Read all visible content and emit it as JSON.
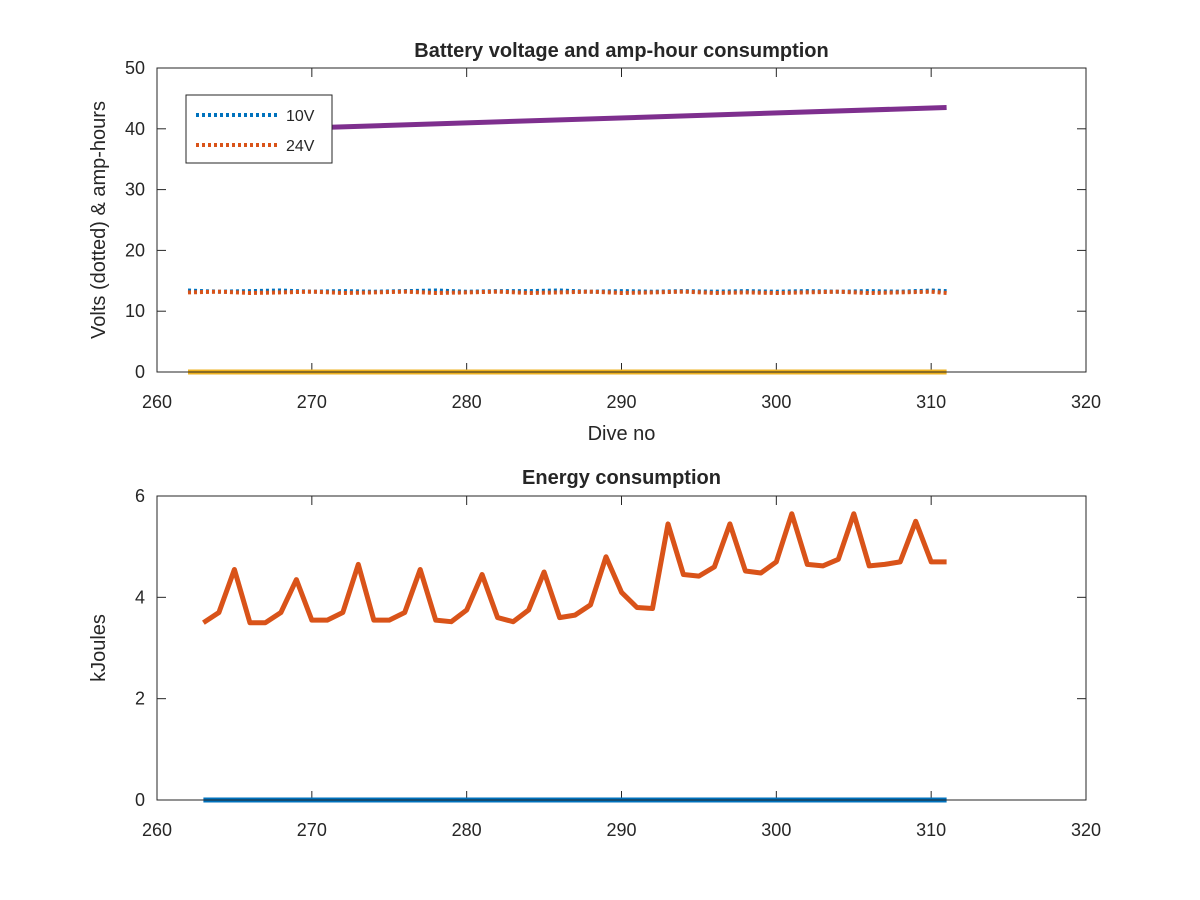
{
  "chart_data": [
    {
      "type": "line",
      "title": "Battery voltage and amp-hour consumption",
      "xlabel": "Dive no",
      "ylabel": "Volts (dotted) & amp-hours",
      "xlim": [
        260,
        320
      ],
      "ylim": [
        0,
        50
      ],
      "xticks": [
        "260",
        "270",
        "280",
        "290",
        "300",
        "310",
        "320"
      ],
      "yticks": [
        "0",
        "10",
        "20",
        "30",
        "40",
        "50"
      ],
      "legend_position": "top-left",
      "series": [
        {
          "name": "10V",
          "style": "dotted",
          "color": "#0072BD",
          "x": [
            262,
            264,
            266,
            268,
            270,
            272,
            274,
            276,
            278,
            280,
            282,
            284,
            286,
            288,
            290,
            292,
            294,
            296,
            298,
            300,
            302,
            304,
            306,
            308,
            310,
            311
          ],
          "y": [
            13.4,
            13.2,
            13.3,
            13.4,
            13.2,
            13.3,
            13.2,
            13.3,
            13.4,
            13.2,
            13.3,
            13.3,
            13.4,
            13.2,
            13.3,
            13.2,
            13.3,
            13.2,
            13.3,
            13.2,
            13.3,
            13.2,
            13.3,
            13.2,
            13.4,
            13.3
          ]
        },
        {
          "name": "24V",
          "style": "dotted",
          "color": "#D95319",
          "x": [
            262,
            264,
            266,
            268,
            270,
            272,
            274,
            276,
            278,
            280,
            282,
            284,
            286,
            288,
            290,
            292,
            294,
            296,
            298,
            300,
            302,
            304,
            306,
            308,
            310,
            311
          ],
          "y": [
            13.1,
            13.2,
            13.0,
            13.1,
            13.2,
            13.0,
            13.1,
            13.2,
            13.0,
            13.1,
            13.2,
            13.0,
            13.1,
            13.2,
            13.0,
            13.1,
            13.2,
            13.0,
            13.1,
            13.0,
            13.1,
            13.2,
            13.0,
            13.1,
            13.2,
            13.0
          ]
        },
        {
          "style": "solid",
          "color": "#EDB120",
          "x": [
            262,
            311
          ],
          "y": [
            0,
            0
          ]
        },
        {
          "style": "solid",
          "color": "#7E2F8E",
          "x": [
            262,
            311
          ],
          "y": [
            39.5,
            43.5
          ]
        }
      ]
    },
    {
      "type": "line",
      "title": "Energy consumption",
      "xlabel": "",
      "ylabel": "kJoules",
      "xlim": [
        260,
        320
      ],
      "ylim": [
        0,
        6
      ],
      "xticks": [
        "260",
        "270",
        "280",
        "290",
        "300",
        "310",
        "320"
      ],
      "yticks": [
        "0",
        "2",
        "4",
        "6"
      ],
      "series": [
        {
          "style": "solid",
          "color": "#0072BD",
          "x": [
            263,
            311
          ],
          "y": [
            0,
            0
          ]
        },
        {
          "style": "solid",
          "color": "#D95319",
          "x": [
            263,
            264,
            265,
            266,
            267,
            268,
            269,
            270,
            271,
            272,
            273,
            274,
            275,
            276,
            277,
            278,
            279,
            280,
            281,
            282,
            283,
            284,
            285,
            286,
            287,
            288,
            289,
            290,
            291,
            292,
            293,
            294,
            295,
            296,
            297,
            298,
            299,
            300,
            301,
            302,
            303,
            304,
            305,
            306,
            307,
            308,
            309,
            310,
            311
          ],
          "y": [
            3.5,
            3.7,
            4.55,
            3.5,
            3.5,
            3.7,
            4.35,
            3.55,
            3.55,
            3.7,
            4.65,
            3.55,
            3.55,
            3.7,
            4.55,
            3.55,
            3.52,
            3.75,
            4.45,
            3.6,
            3.52,
            3.75,
            4.5,
            3.6,
            3.65,
            3.85,
            4.8,
            4.1,
            3.8,
            3.78,
            5.45,
            4.45,
            4.42,
            4.6,
            5.45,
            4.52,
            4.48,
            4.7,
            5.65,
            4.65,
            4.62,
            4.75,
            5.65,
            4.62,
            4.65,
            4.7,
            5.5,
            4.7,
            4.7
          ]
        }
      ]
    }
  ]
}
